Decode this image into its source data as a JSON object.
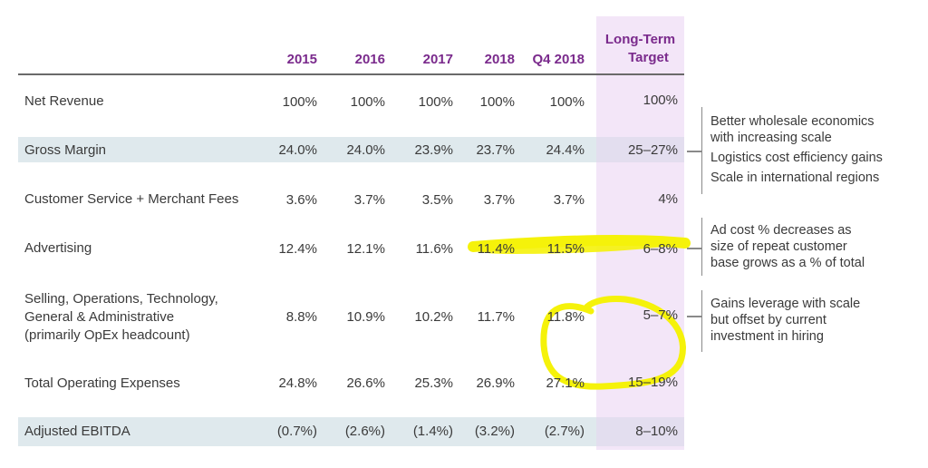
{
  "colors": {
    "header_text": "#7a2a8c",
    "row_shade": "#dfe9ed",
    "target_column": "#f3e6f8",
    "highlighter": "#f5f20a"
  },
  "table": {
    "headers": [
      "2015",
      "2016",
      "2017",
      "2018",
      "Q4 2018"
    ],
    "target_header_line1": "Long-Term",
    "target_header_line2": "Target",
    "rows": [
      {
        "label": "Net Revenue",
        "values": [
          "100%",
          "100%",
          "100%",
          "100%",
          "100%"
        ],
        "target": "100%"
      },
      {
        "label": "Gross Margin",
        "values": [
          "24.0%",
          "24.0%",
          "23.9%",
          "23.7%",
          "24.4%"
        ],
        "target": "25–27%"
      },
      {
        "label": "Customer Service + Merchant Fees",
        "values": [
          "3.6%",
          "3.7%",
          "3.5%",
          "3.7%",
          "3.7%"
        ],
        "target": "4%"
      },
      {
        "label": "Advertising",
        "values": [
          "12.4%",
          "12.1%",
          "11.6%",
          "11.4%",
          "11.5%"
        ],
        "target": "6–8%"
      },
      {
        "label_lines": [
          "Selling, Operations, Technology,",
          "General & Administrative",
          "(primarily OpEx headcount)"
        ],
        "values": [
          "8.8%",
          "10.9%",
          "10.2%",
          "11.7%",
          "11.8%"
        ],
        "target": "5–7%"
      },
      {
        "label": "Total Operating Expenses",
        "values": [
          "24.8%",
          "26.6%",
          "25.3%",
          "26.9%",
          "27.1%"
        ],
        "target": "15–19%"
      },
      {
        "label": "Adjusted EBITDA",
        "values": [
          "(0.7%)",
          "(2.6%)",
          "(1.4%)",
          "(3.2%)",
          "(2.7%)"
        ],
        "target": "8–10%"
      }
    ]
  },
  "notes": {
    "gross_margin": [
      "Better wholesale economics",
      "with increasing scale",
      "Logistics cost efficiency gains",
      "Scale in international regions"
    ],
    "advertising": [
      "Ad cost % decreases as",
      "size of repeat customer",
      "base grows as a % of total"
    ],
    "opex": [
      "Gains leverage with scale",
      "but offset by current",
      "investment in hiring"
    ]
  }
}
